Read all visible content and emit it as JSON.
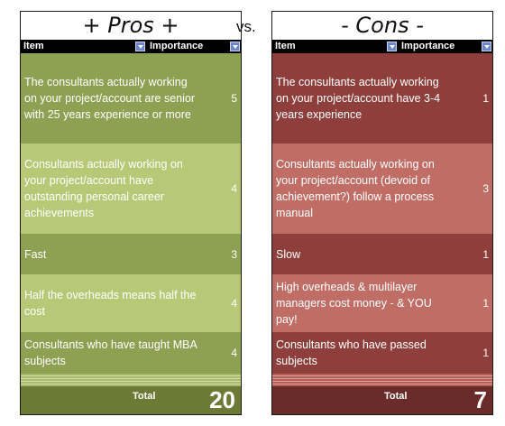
{
  "vs_label": "vs.",
  "pros": {
    "title": "+ Pros +",
    "header": {
      "item": "Item",
      "importance": "Importance"
    },
    "rows": [
      {
        "text": "The consultants actually working on your project/account are senior with 25 years experience or more",
        "value": "5"
      },
      {
        "text": "Consultants actually working on your project/account have outstanding personal career achievements",
        "value": "4"
      },
      {
        "text": "Fast",
        "value": "3"
      },
      {
        "text": "Half the overheads means half the cost",
        "value": "4"
      },
      {
        "text": "Consultants who have taught MBA subjects",
        "value": "4"
      }
    ],
    "total_label": "Total",
    "total_value": "20"
  },
  "cons": {
    "title": "- Cons -",
    "header": {
      "item": "Item",
      "importance": "Importance"
    },
    "rows": [
      {
        "text": "The consultants actually working on your project/account have 3-4 years experience",
        "value": "1"
      },
      {
        "text": "Consultants actually working on your project/account (devoid of achievement?) follow a process manual",
        "value": "3"
      },
      {
        "text": "Slow",
        "value": "1"
      },
      {
        "text": "High overheads & multilayer managers cost money - & YOU pay!",
        "value": "1"
      },
      {
        "text": "Consultants who have passed subjects",
        "value": "1"
      }
    ],
    "total_label": "Total",
    "total_value": "7"
  },
  "colors": {
    "pros_dark": "#8ea052",
    "pros_light": "#b7c977",
    "pros_total": "#6d7a35",
    "cons_dark": "#8e3f3b",
    "cons_light": "#c06d66",
    "cons_total": "#6a2c2a",
    "header_bg": "#000000",
    "filter_button": "#6d86c7"
  },
  "icons": {
    "filter": "dropdown-arrow-icon"
  }
}
